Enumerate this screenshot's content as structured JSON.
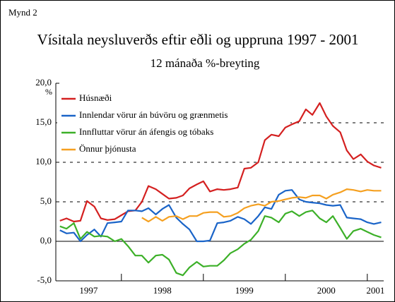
{
  "chart_data": {
    "type": "line",
    "figure_label": "Mynd 2",
    "title": "Vísitala neysluverðs eftir eðli og uppruna 1997 - 2001",
    "subtitle": "12 mánaða %-breyting",
    "y_label": "%",
    "x": [
      1997.25,
      1997.33,
      1997.42,
      1997.5,
      1997.58,
      1997.67,
      1997.75,
      1997.83,
      1997.92,
      1998.0,
      1998.08,
      1998.17,
      1998.25,
      1998.33,
      1998.42,
      1998.5,
      1998.58,
      1998.67,
      1998.75,
      1998.83,
      1998.92,
      1999.0,
      1999.08,
      1999.17,
      1999.25,
      1999.33,
      1999.42,
      1999.5,
      1999.58,
      1999.67,
      1999.75,
      1999.83,
      1999.92,
      2000.0,
      2000.08,
      2000.17,
      2000.25,
      2000.33,
      2000.42,
      2000.5,
      2000.58,
      2000.67,
      2000.75,
      2000.83,
      2000.92,
      2001.0,
      2001.08,
      2001.17
    ],
    "series": [
      {
        "name": "Húsnæði",
        "color": "#d42020",
        "values": [
          2.6,
          2.9,
          2.5,
          2.6,
          5.1,
          4.4,
          2.9,
          2.7,
          2.8,
          3.3,
          3.8,
          3.9,
          5.0,
          7.0,
          6.6,
          6.0,
          5.4,
          5.5,
          5.8,
          6.7,
          7.2,
          7.6,
          6.3,
          6.6,
          6.5,
          6.6,
          6.8,
          9.2,
          9.3,
          10.0,
          12.8,
          13.5,
          13.3,
          14.4,
          14.8,
          15.2,
          16.7,
          16.0,
          17.5,
          15.8,
          14.6,
          13.8,
          11.5,
          10.4,
          11.0,
          10.1,
          9.6,
          9.3
        ]
      },
      {
        "name": "Innlendar vörur án búvöru og grænmetis",
        "color": "#1a64c8",
        "values": [
          1.4,
          1.0,
          1.1,
          0.0,
          0.8,
          1.5,
          0.6,
          2.3,
          2.4,
          2.5,
          3.9,
          3.9,
          3.8,
          4.2,
          3.4,
          4.1,
          4.6,
          3.0,
          2.2,
          1.5,
          0.0,
          0.0,
          0.1,
          2.3,
          2.4,
          2.6,
          3.1,
          2.8,
          2.2,
          3.2,
          4.3,
          4.1,
          5.9,
          6.4,
          6.5,
          5.3,
          5.0,
          4.9,
          4.8,
          4.6,
          4.5,
          4.6,
          3.0,
          2.9,
          2.8,
          2.4,
          2.2,
          2.4
        ]
      },
      {
        "name": "Innfluttar vörur án áfengis og tóbaks",
        "color": "#3cb028",
        "values": [
          1.9,
          1.6,
          2.3,
          0.3,
          1.2,
          0.6,
          0.7,
          0.6,
          0.0,
          0.3,
          -0.6,
          -1.8,
          -1.8,
          -2.7,
          -1.8,
          -1.7,
          -2.3,
          -4.0,
          -4.3,
          -3.3,
          -2.6,
          -3.2,
          -3.1,
          -3.1,
          -2.4,
          -1.5,
          -1.0,
          -0.3,
          0.2,
          1.3,
          3.2,
          3.0,
          2.4,
          3.5,
          3.8,
          3.2,
          3.7,
          3.9,
          2.9,
          2.4,
          3.2,
          1.7,
          0.3,
          1.3,
          1.6,
          1.2,
          0.8,
          0.5
        ]
      },
      {
        "name": "Önnur þjónusta",
        "color": "#f5a020",
        "values": [
          null,
          null,
          null,
          null,
          null,
          null,
          null,
          null,
          null,
          null,
          null,
          null,
          3.0,
          2.5,
          3.1,
          2.6,
          3.1,
          3.2,
          2.8,
          3.2,
          3.2,
          3.6,
          3.7,
          3.7,
          3.1,
          3.2,
          3.6,
          4.2,
          4.5,
          4.7,
          4.5,
          5.0,
          5.1,
          5.3,
          5.5,
          5.6,
          5.5,
          5.8,
          5.8,
          5.4,
          5.9,
          6.2,
          6.6,
          6.5,
          6.3,
          6.5,
          6.4,
          6.4
        ]
      }
    ],
    "xlim": [
      1997.2,
      2001.2
    ],
    "xticks": [
      1998,
      1999,
      2000,
      2001
    ],
    "year_labels": [
      1997,
      1998,
      1999,
      2000,
      2001
    ],
    "ylim": [
      -5,
      20
    ],
    "yticks": [
      {
        "value": -5,
        "label": "-5,0"
      },
      {
        "value": 0,
        "label": "0,0"
      },
      {
        "value": 5,
        "label": "5,0"
      },
      {
        "value": 10,
        "label": "10,0"
      },
      {
        "value": 15,
        "label": "15,0"
      },
      {
        "value": 20,
        "label": "20,0"
      }
    ],
    "grid": true,
    "zero_line": true,
    "legend": "top-left"
  }
}
